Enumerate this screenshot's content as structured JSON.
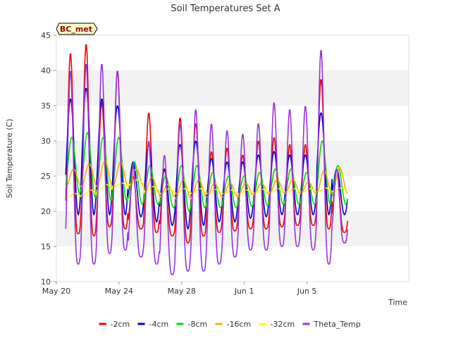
{
  "chart_data": {
    "type": "line",
    "title": "Soil Temperatures Set A",
    "xlabel": "Time",
    "ylabel": "Soil Temperature (C)",
    "badge": "BC_met",
    "xlim": [
      0,
      22.5
    ],
    "ylim": [
      10,
      45
    ],
    "yticks": [
      10,
      15,
      20,
      25,
      30,
      35,
      40,
      45
    ],
    "xticks": [
      {
        "day": 0,
        "label": "May 20"
      },
      {
        "day": 4,
        "label": "May 24"
      },
      {
        "day": 8,
        "label": "May 28"
      },
      {
        "day": 12,
        "label": "Jun 1"
      },
      {
        "day": 16,
        "label": "Jun 5"
      }
    ],
    "grid": "alternating horizontal bands",
    "legend_position": "bottom",
    "series": [
      {
        "name": "-2cm",
        "color": "#ee0000",
        "daily_min": [
          16.8,
          16.5,
          17.8,
          17.5,
          17.5,
          17.0,
          16.5,
          15.5,
          16.5,
          17.0,
          17.2,
          17.5,
          17.5,
          17.8,
          18.0,
          18.0,
          17.5,
          17.0
        ],
        "daily_max": [
          42.5,
          43.8,
          35.5,
          40.0,
          25.0,
          34.0,
          26.0,
          33.3,
          32.5,
          28.5,
          29.0,
          28.0,
          30.0,
          30.5,
          29.5,
          29.5,
          38.8,
          26.0
        ]
      },
      {
        "name": "-4cm",
        "color": "#0000cc",
        "daily_min": [
          19.5,
          19.5,
          19.5,
          19.5,
          19.2,
          18.5,
          18.0,
          17.5,
          18.0,
          18.5,
          18.5,
          19.0,
          19.2,
          19.5,
          19.5,
          19.5,
          19.5,
          19.5
        ],
        "daily_max": [
          36.0,
          37.5,
          36.0,
          35.0,
          27.0,
          29.5,
          26.0,
          29.5,
          30.0,
          27.5,
          27.0,
          27.0,
          28.0,
          28.5,
          28.0,
          28.0,
          34.0,
          26.0
        ]
      },
      {
        "name": "-8cm",
        "color": "#00dd00",
        "daily_min": [
          22.5,
          22.0,
          21.5,
          21.5,
          21.0,
          21.0,
          20.5,
          20.0,
          20.5,
          20.5,
          20.5,
          20.7,
          20.8,
          21.0,
          21.0,
          21.0,
          21.0,
          21.0
        ],
        "daily_max": [
          30.5,
          31.2,
          30.5,
          30.5,
          27.0,
          26.5,
          25.0,
          26.5,
          26.5,
          25.5,
          25.0,
          25.0,
          25.5,
          26.0,
          26.0,
          25.5,
          30.0,
          26.5
        ]
      },
      {
        "name": "-16cm",
        "color": "#ffaa00",
        "daily_min": [
          23.5,
          23.5,
          23.5,
          23.5,
          23.5,
          22.5,
          22.0,
          21.8,
          22.0,
          22.0,
          22.0,
          22.3,
          22.4,
          22.5,
          22.5,
          22.5,
          22.5,
          22.5
        ],
        "daily_max": [
          26.0,
          26.8,
          27.2,
          27.0,
          26.0,
          24.8,
          23.8,
          24.5,
          24.5,
          24.0,
          24.0,
          24.0,
          24.0,
          24.5,
          24.5,
          24.2,
          25.8,
          26.2
        ]
      },
      {
        "name": "-32cm",
        "color": "#ffff00",
        "daily_min": [
          22.0,
          22.3,
          23.0,
          23.5,
          23.8,
          22.8,
          22.5,
          22.5,
          22.5,
          22.5,
          22.5,
          22.5,
          22.6,
          22.7,
          22.7,
          22.7,
          22.8,
          22.8
        ],
        "daily_max": [
          22.5,
          23.0,
          23.8,
          24.0,
          24.5,
          23.5,
          23.2,
          23.2,
          23.2,
          23.1,
          23.0,
          23.0,
          23.1,
          23.2,
          23.2,
          23.2,
          23.3,
          23.3
        ]
      },
      {
        "name": "Theta_Temp",
        "color": "#9933dd",
        "daily_min": [
          12.5,
          12.5,
          14.0,
          14.5,
          13.5,
          12.5,
          11.0,
          11.5,
          11.5,
          12.5,
          13.5,
          14.5,
          14.5,
          15.0,
          15.0,
          14.5,
          12.5,
          15.5
        ],
        "daily_max": [
          40.0,
          41.0,
          41.0,
          40.0,
          26.5,
          30.0,
          28.0,
          32.5,
          34.5,
          32.5,
          31.5,
          31.0,
          32.5,
          35.5,
          34.5,
          35.0,
          43.0,
          26.0
        ]
      }
    ]
  }
}
